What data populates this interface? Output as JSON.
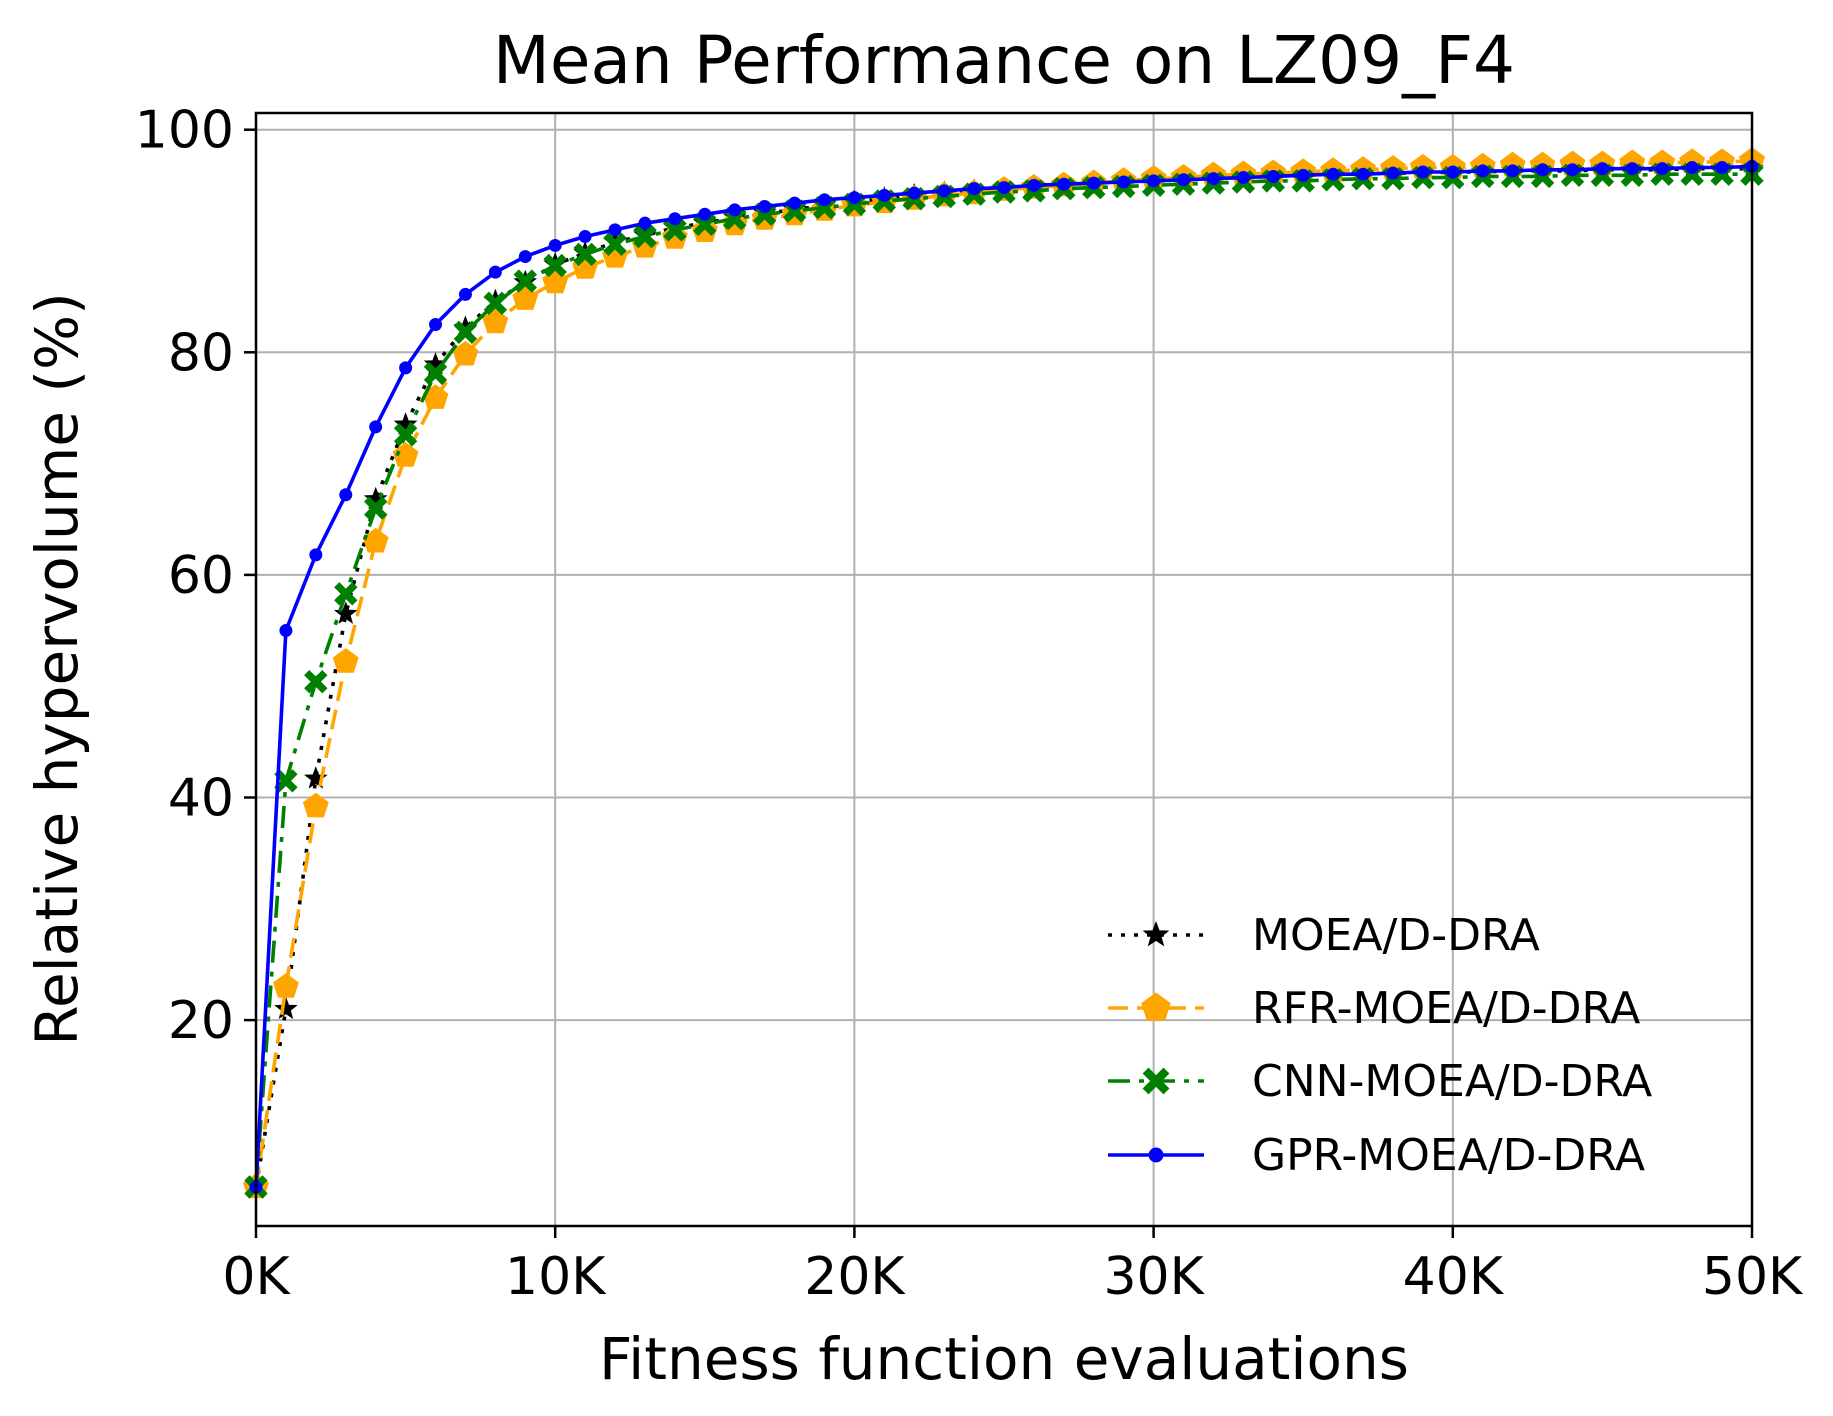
{
  "chart_data": {
    "type": "line",
    "title": "Mean Performance on LZ09_F4",
    "xlabel": "Fitness function evaluations",
    "ylabel": "Relative hypervolume (%)",
    "xlim": [
      0,
      50000
    ],
    "ylim": [
      1.5,
      101.5
    ],
    "xticks": [
      0,
      10000,
      20000,
      30000,
      40000,
      50000
    ],
    "xtick_labels": [
      "0K",
      "10K",
      "20K",
      "30K",
      "40K",
      "50K"
    ],
    "yticks": [
      20,
      40,
      60,
      80,
      100
    ],
    "ytick_labels": [
      "20",
      "40",
      "60",
      "80",
      "100"
    ],
    "grid": true,
    "legend_position": "lower-right",
    "x": [
      0,
      1000,
      2000,
      3000,
      4000,
      5000,
      6000,
      7000,
      8000,
      9000,
      10000,
      11000,
      12000,
      13000,
      14000,
      15000,
      16000,
      17000,
      18000,
      19000,
      20000,
      21000,
      22000,
      23000,
      24000,
      25000,
      26000,
      27000,
      28000,
      29000,
      30000,
      31000,
      32000,
      33000,
      34000,
      35000,
      36000,
      37000,
      38000,
      39000,
      40000,
      41000,
      42000,
      43000,
      44000,
      45000,
      46000,
      47000,
      48000,
      49000,
      50000
    ],
    "series": [
      {
        "name": "MOEA/D-DRA",
        "color": "#000000",
        "dash": "dotted",
        "marker": "star",
        "values": [
          5,
          21,
          41.7,
          56.5,
          66.8,
          73.5,
          78.9,
          82.2,
          84.6,
          86.3,
          87.9,
          88.9,
          89.9,
          90.5,
          91.2,
          91.6,
          92.1,
          92.5,
          92.8,
          93.2,
          93.5,
          93.8,
          94.1,
          94.3,
          94.5,
          94.7,
          94.9,
          95.0,
          95.2,
          95.3,
          95.4,
          95.5,
          95.6,
          95.7,
          95.8,
          95.9,
          96.0,
          96.0,
          96.1,
          96.1,
          96.2,
          96.2,
          96.3,
          96.3,
          96.3,
          96.4,
          96.4,
          96.4,
          96.5,
          96.5,
          96.5
        ]
      },
      {
        "name": "RFR-MOEA/D-DRA",
        "color": "#FFA500",
        "dash": "dashed",
        "marker": "pentagon",
        "values": [
          5,
          23,
          39.2,
          52.2,
          63,
          70.7,
          75.9,
          79.8,
          82.7,
          84.8,
          86.3,
          87.6,
          88.6,
          89.5,
          90.3,
          90.9,
          91.5,
          92.0,
          92.4,
          92.8,
          93.2,
          93.5,
          93.8,
          94.1,
          94.3,
          94.6,
          94.8,
          95.0,
          95.2,
          95.4,
          95.6,
          95.7,
          95.9,
          96.0,
          96.1,
          96.2,
          96.3,
          96.4,
          96.5,
          96.6,
          96.6,
          96.7,
          96.8,
          96.8,
          96.9,
          96.9,
          97.0,
          97.0,
          97.1,
          97.1,
          97.2
        ]
      },
      {
        "name": "CNN-MOEA/D-DRA",
        "color": "#008000",
        "dash": "dashdot",
        "marker": "x",
        "values": [
          5,
          41.5,
          50.4,
          58.3,
          66,
          72.6,
          78.1,
          81.8,
          84.4,
          86.4,
          87.8,
          88.8,
          89.7,
          90.4,
          91.0,
          91.5,
          92.0,
          92.4,
          92.7,
          93.0,
          93.3,
          93.6,
          93.8,
          94.0,
          94.2,
          94.4,
          94.5,
          94.7,
          94.8,
          94.9,
          95.0,
          95.1,
          95.2,
          95.3,
          95.4,
          95.4,
          95.5,
          95.6,
          95.6,
          95.7,
          95.7,
          95.8,
          95.8,
          95.8,
          95.9,
          95.9,
          95.9,
          96.0,
          96.0,
          96.0,
          96.0
        ]
      },
      {
        "name": "GPR-MOEA/D-DRA",
        "color": "#0000FF",
        "dash": "solid",
        "marker": "circle",
        "values": [
          5,
          55,
          61.8,
          67.2,
          73.3,
          78.6,
          82.5,
          85.2,
          87.2,
          88.6,
          89.6,
          90.4,
          91.0,
          91.6,
          92.0,
          92.4,
          92.8,
          93.1,
          93.4,
          93.7,
          93.9,
          94.1,
          94.3,
          94.5,
          94.7,
          94.8,
          95.0,
          95.1,
          95.2,
          95.3,
          95.4,
          95.5,
          95.6,
          95.7,
          95.8,
          95.9,
          96.0,
          96.0,
          96.1,
          96.2,
          96.2,
          96.3,
          96.3,
          96.4,
          96.4,
          96.5,
          96.5,
          96.5,
          96.6,
          96.6,
          96.7
        ]
      }
    ]
  }
}
